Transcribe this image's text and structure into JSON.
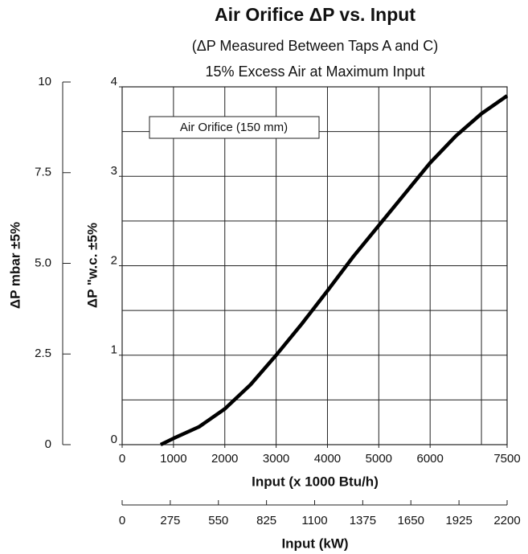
{
  "chart_data": {
    "type": "line",
    "title": "Air Orifice ΔP vs. Input",
    "subtitle": "(ΔP Measured Between Taps A and C)",
    "subtitle2": "15% Excess Air at Maximum Input",
    "xlabel": "Input (x 1000 Btu/h)",
    "ylabel": "ΔP \"w.c.  ±5%",
    "annotation": "Air Orifice (150 mm)",
    "xlim": [
      0,
      7500
    ],
    "xticks": [
      0,
      1000,
      2000,
      3000,
      4000,
      5000,
      6000,
      7500
    ],
    "xgrid": [
      1000,
      2000,
      3000,
      4000,
      5000,
      6000,
      7000
    ],
    "ylim": [
      0,
      4
    ],
    "yticks": [
      0,
      1,
      2,
      3,
      4
    ],
    "ygrid": [
      0.5,
      1,
      1.5,
      2,
      2.5,
      3,
      3.5
    ],
    "grid": true,
    "series": [
      {
        "name": "Air Orifice (150 mm)",
        "color": "#000000",
        "x": [
          750,
          1000,
          1500,
          2000,
          2500,
          3000,
          3500,
          4000,
          4500,
          5000,
          5500,
          6000,
          6500,
          7000,
          7500
        ],
        "values": [
          0,
          0.07,
          0.2,
          0.4,
          0.67,
          1.0,
          1.35,
          1.72,
          2.1,
          2.45,
          2.8,
          3.15,
          3.45,
          3.7,
          3.9
        ]
      }
    ],
    "mbar_axis": {
      "label": "ΔP mbar  ±5%",
      "lim": [
        0,
        10
      ],
      "ticks": [
        0,
        2.5,
        {
          "value": 5,
          "label": "5.0"
        },
        7.5,
        10
      ]
    },
    "kw_axis": {
      "label": "Input (kW)",
      "lim": [
        0,
        2200
      ],
      "ticks": [
        0,
        275,
        550,
        825,
        1100,
        1375,
        1650,
        1925,
        2200
      ]
    }
  }
}
